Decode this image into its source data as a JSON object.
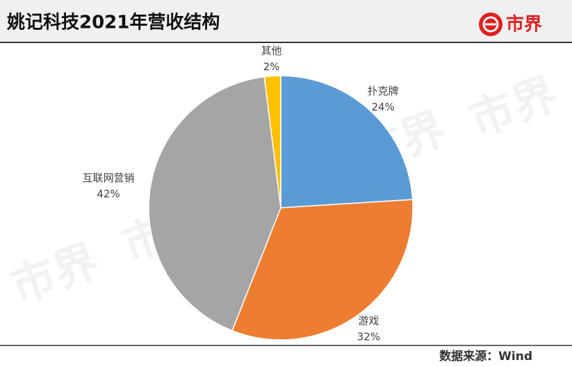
{
  "chart_data": {
    "type": "pie",
    "title": "姚记科技2021年营收结构",
    "categories": [
      "扑克牌",
      "游戏",
      "互联网营销",
      "其他"
    ],
    "values": [
      24,
      32,
      42,
      2
    ],
    "value_labels": [
      "24%",
      "32%",
      "42%",
      "2%"
    ],
    "colors": [
      "#5b9bd5",
      "#ed7d31",
      "#a5a5a5",
      "#ffc000"
    ]
  },
  "header": {
    "logo_text": "市界"
  },
  "source": "数据来源：Wind"
}
